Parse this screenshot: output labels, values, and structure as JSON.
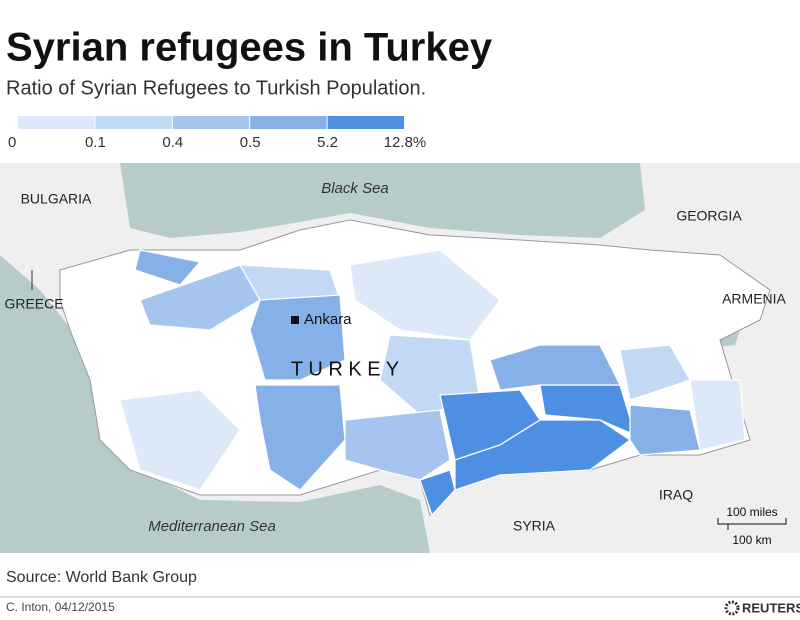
{
  "header": {
    "title": "Syrian refugees in Turkey",
    "subtitle": "Ratio of Syrian Refugees to Turkish Population."
  },
  "legend": {
    "colors": [
      "#dde9f9",
      "#c3d8f4",
      "#a6c5ee",
      "#86b0e8",
      "#4d8fe2"
    ],
    "ticks": [
      "0",
      "0.1",
      "0.4",
      "0.5",
      "5.2",
      "12.8%"
    ]
  },
  "map": {
    "sea_labels": [
      "Black Sea",
      "Mediterranean Sea"
    ],
    "country_labels": [
      "BULGARIA",
      "GEORGIA",
      "GREECE",
      "ARMENIA",
      "IRAQ",
      "SYRIA"
    ],
    "city": "Ankara",
    "country": "T U R K E Y",
    "scale": [
      "100 miles",
      "100 km"
    ]
  },
  "footer": {
    "source": "Source: World Bank Group",
    "credit": "C. Inton, 04/12/2015",
    "logo": "REUTERS"
  }
}
